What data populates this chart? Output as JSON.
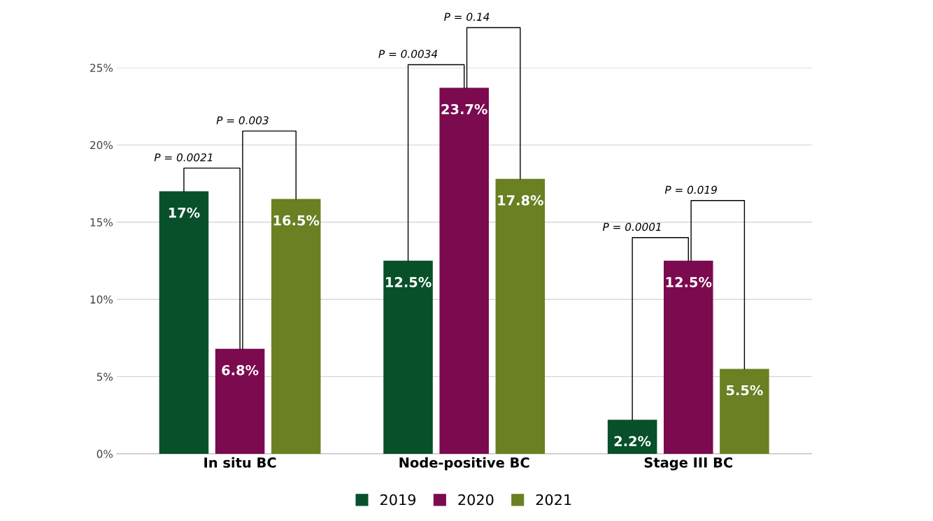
{
  "chart_data": {
    "type": "bar",
    "categories": [
      "In situ BC",
      "Node-positive BC",
      "Stage III BC"
    ],
    "series": [
      {
        "name": "2019",
        "color": "#07502a",
        "values": [
          17,
          12.5,
          2.2
        ],
        "value_labels": [
          "17%",
          "12.5%",
          "2.2%"
        ]
      },
      {
        "name": "2020",
        "color": "#7b0a4f",
        "values": [
          6.8,
          23.7,
          12.5
        ],
        "value_labels": [
          "6.8%",
          "23.7%",
          "12.5%"
        ]
      },
      {
        "name": "2021",
        "color": "#6b7f23",
        "values": [
          16.5,
          17.8,
          5.5
        ],
        "value_labels": [
          "16.5%",
          "17.8%",
          "5.5%"
        ]
      }
    ],
    "ylim": [
      0,
      25
    ],
    "yticks": [
      {
        "value": 0,
        "label": "0%"
      },
      {
        "value": 5,
        "label": "5%"
      },
      {
        "value": 10,
        "label": "10%"
      },
      {
        "value": 15,
        "label": "15%"
      },
      {
        "value": 20,
        "label": "20%"
      },
      {
        "value": 25,
        "label": "25%"
      }
    ],
    "grid": "y",
    "legend": "bottom",
    "annotations": [
      "P = 0.0021",
      "P = 0.003",
      "P = 0.0034",
      "P = 0.14",
      "P = 0.0001",
      "P = 0.019"
    ]
  }
}
